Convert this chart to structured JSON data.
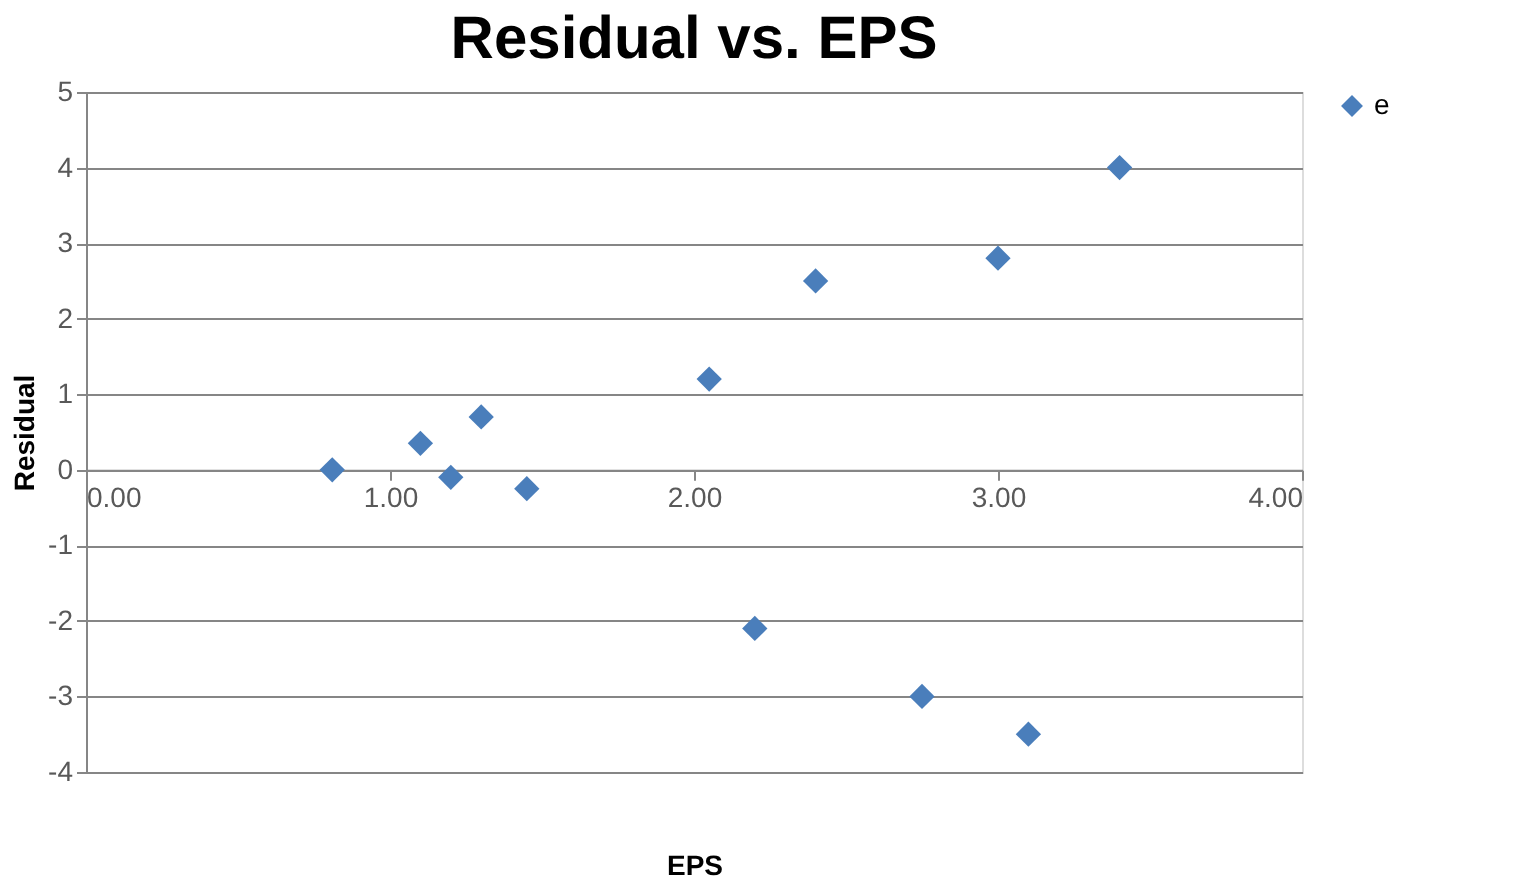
{
  "chart_data": {
    "type": "scatter",
    "title": "Residual vs. EPS",
    "xlabel": "EPS",
    "ylabel": "Residual",
    "x": [
      0.81,
      1.1,
      1.2,
      1.3,
      1.45,
      2.05,
      2.2,
      2.4,
      2.75,
      3.0,
      3.1,
      3.4
    ],
    "series": [
      {
        "name": "e",
        "color": "#4a7ebb",
        "values": [
          0.0,
          0.35,
          -0.1,
          0.7,
          -0.25,
          1.2,
          -2.1,
          2.5,
          -3.0,
          2.8,
          -3.5,
          4.0
        ]
      }
    ],
    "xlim": [
      0,
      4
    ],
    "xticks": [
      {
        "value": 0,
        "label": "0.00"
      },
      {
        "value": 1,
        "label": "1.00"
      },
      {
        "value": 2,
        "label": "2.00"
      },
      {
        "value": 3,
        "label": "3.00"
      },
      {
        "value": 4,
        "label": "4.00"
      }
    ],
    "ylim": [
      -4,
      5
    ],
    "yticks": [
      -4,
      -3,
      -2,
      -1,
      0,
      1,
      2,
      3,
      4,
      5
    ],
    "grid": "y",
    "legend": "right",
    "marker": "diamond"
  }
}
